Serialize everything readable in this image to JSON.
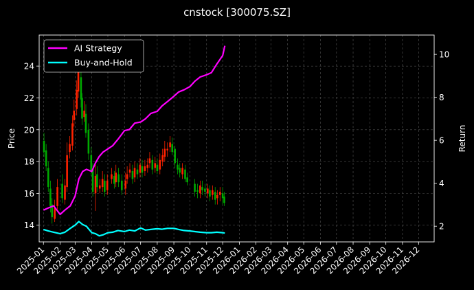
{
  "chart_data": {
    "type": "line",
    "title": "cnstock [300075.SZ]",
    "ylabel": "Price",
    "y2label": "Return",
    "xlabel": "",
    "ylim": [
      12.95,
      25.95
    ],
    "y2lim": [
      1.27,
      10.9
    ],
    "yticks": [
      14,
      16,
      18,
      20,
      22,
      24
    ],
    "y2ticks": [
      2,
      4,
      6,
      8,
      10
    ],
    "xlim": [
      "2024-12-24",
      "2026-12-30"
    ],
    "xticks": [
      "2025-01",
      "2025-02",
      "2025-03",
      "2025-04",
      "2025-05",
      "2025-06",
      "2025-07",
      "2025-08",
      "2025-09",
      "2025-10",
      "2025-11",
      "2025-12",
      "2026-01",
      "2026-02",
      "2026-03",
      "2026-04",
      "2026-05",
      "2026-06",
      "2026-07",
      "2026-08",
      "2026-09",
      "2026-10",
      "2026-11",
      "2026-12"
    ],
    "grid": true,
    "legend_position": "top-left",
    "colors": {
      "up": "#ff2200",
      "down": "#00aa00",
      "ai": "#ff00ff",
      "bh": "#00ffff",
      "background": "#000000"
    },
    "candlesticks": {
      "x": [
        "2025-01-02",
        "2025-01-06",
        "2025-01-10",
        "2025-01-14",
        "2025-01-17",
        "2025-01-22",
        "2025-01-27",
        "2025-02-05",
        "2025-02-10",
        "2025-02-14",
        "2025-02-19",
        "2025-02-24",
        "2025-02-27",
        "2025-03-04",
        "2025-03-07",
        "2025-03-12",
        "2025-03-14",
        "2025-03-18",
        "2025-03-21",
        "2025-03-26",
        "2025-03-31",
        "2025-04-03",
        "2025-04-08",
        "2025-04-11",
        "2025-04-16",
        "2025-04-21",
        "2025-04-25",
        "2025-04-30",
        "2025-05-08",
        "2025-05-13",
        "2025-05-16",
        "2025-05-21",
        "2025-05-27",
        "2025-06-03",
        "2025-06-06",
        "2025-06-11",
        "2025-06-16",
        "2025-06-20",
        "2025-06-25",
        "2025-06-30",
        "2025-07-04",
        "2025-07-09",
        "2025-07-14",
        "2025-07-18",
        "2025-07-23",
        "2025-07-28",
        "2025-08-01",
        "2025-08-06",
        "2025-08-11",
        "2025-08-15",
        "2025-08-20",
        "2025-08-25",
        "2025-08-29",
        "2025-09-03",
        "2025-09-08",
        "2025-09-12",
        "2025-09-17",
        "2025-09-22",
        "2025-09-26",
        "2025-10-10",
        "2025-10-15",
        "2025-10-20",
        "2025-10-24",
        "2025-10-29",
        "2025-11-03",
        "2025-11-07",
        "2025-11-12",
        "2025-11-17",
        "2025-11-21",
        "2025-11-26",
        "2025-12-01",
        "2025-12-04"
      ],
      "open": [
        19.3,
        18.7,
        17.6,
        16.3,
        15.3,
        14.4,
        15.2,
        16.6,
        15.6,
        16.4,
        18.6,
        19.0,
        20.6,
        21.3,
        22.4,
        23.3,
        22.0,
        20.8,
        21.0,
        20.0,
        18.4,
        17.5,
        16.0,
        17.2,
        16.3,
        16.4,
        16.8,
        16.2,
        16.9,
        17.1,
        16.7,
        17.2,
        16.8,
        16.3,
        16.9,
        17.3,
        17.4,
        17.0,
        17.5,
        17.3,
        17.7,
        17.4,
        17.6,
        17.9,
        18.1,
        17.6,
        17.8,
        17.5,
        18.0,
        18.3,
        18.7,
        18.9,
        19.1,
        18.8,
        17.8,
        17.6,
        17.2,
        17.5,
        17.0,
        16.6,
        16.2,
        16.0,
        16.4,
        16.3,
        16.0,
        16.2,
        15.9,
        16.1,
        15.7,
        15.9,
        16.0,
        15.8
      ],
      "close": [
        18.6,
        17.7,
        16.4,
        15.2,
        14.5,
        15.1,
        16.4,
        15.7,
        16.5,
        18.4,
        19.1,
        20.4,
        21.2,
        22.5,
        23.6,
        21.9,
        20.7,
        21.2,
        19.8,
        18.5,
        17.4,
        16.1,
        17.1,
        16.4,
        16.5,
        16.9,
        16.1,
        16.8,
        17.2,
        16.6,
        17.3,
        16.7,
        16.2,
        16.8,
        17.2,
        17.5,
        16.9,
        17.6,
        17.2,
        17.8,
        17.3,
        17.7,
        17.8,
        18.2,
        17.5,
        17.9,
        17.4,
        18.1,
        18.4,
        18.8,
        18.8,
        19.2,
        18.6,
        17.9,
        17.5,
        17.3,
        17.6,
        16.9,
        16.7,
        16.1,
        16.1,
        16.5,
        16.2,
        16.1,
        16.3,
        15.8,
        16.2,
        15.6,
        15.9,
        16.1,
        15.7,
        15.4
      ],
      "high": [
        19.8,
        19.1,
        18.0,
        16.8,
        15.7,
        15.6,
        16.9,
        17.2,
        16.9,
        19.2,
        19.6,
        20.9,
        21.9,
        23.1,
        24.7,
        23.8,
        22.3,
        21.8,
        21.6,
        20.4,
        18.9,
        17.9,
        17.8,
        17.7,
        16.9,
        17.4,
        17.2,
        17.2,
        17.6,
        17.4,
        17.8,
        17.6,
        17.2,
        17.3,
        17.7,
        17.9,
        17.8,
        18.0,
        17.9,
        18.2,
        18.1,
        18.1,
        18.2,
        18.6,
        18.4,
        18.3,
        18.2,
        18.5,
        18.8,
        19.3,
        19.2,
        19.6,
        19.5,
        19.0,
        18.2,
        17.9,
        17.9,
        17.8,
        17.3,
        16.9,
        16.6,
        16.8,
        16.8,
        16.6,
        16.6,
        16.5,
        16.5,
        16.4,
        16.2,
        16.4,
        16.4,
        16.1
      ],
      "low": [
        18.3,
        17.4,
        16.1,
        14.8,
        14.1,
        14.2,
        15.0,
        15.4,
        15.3,
        16.1,
        18.2,
        18.7,
        20.2,
        20.9,
        22.0,
        21.4,
        20.3,
        20.5,
        19.5,
        18.1,
        17.1,
        15.8,
        14.9,
        16.1,
        16.0,
        16.1,
        15.8,
        15.9,
        16.6,
        16.3,
        16.4,
        16.4,
        15.9,
        15.9,
        16.6,
        17.0,
        16.6,
        16.7,
        16.9,
        17.0,
        17.0,
        17.1,
        17.3,
        17.6,
        17.2,
        17.3,
        17.2,
        17.2,
        17.7,
        18.0,
        18.3,
        18.6,
        18.4,
        17.6,
        17.2,
        17.0,
        16.9,
        16.7,
        16.5,
        15.8,
        15.7,
        15.7,
        15.9,
        15.8,
        15.7,
        15.5,
        15.6,
        15.3,
        15.3,
        15.5,
        15.3,
        15.2
      ]
    },
    "series": [
      {
        "name": "AI Strategy",
        "axis": "right",
        "x": [
          "2025-01-01",
          "2025-01-10",
          "2025-01-20",
          "2025-02-01",
          "2025-02-10",
          "2025-02-20",
          "2025-03-01",
          "2025-03-08",
          "2025-03-15",
          "2025-03-22",
          "2025-04-01",
          "2025-04-08",
          "2025-04-15",
          "2025-04-22",
          "2025-05-01",
          "2025-05-10",
          "2025-05-20",
          "2025-06-01",
          "2025-06-10",
          "2025-06-20",
          "2025-07-01",
          "2025-07-10",
          "2025-07-20",
          "2025-08-01",
          "2025-08-10",
          "2025-08-20",
          "2025-09-01",
          "2025-09-10",
          "2025-09-20",
          "2025-10-01",
          "2025-10-10",
          "2025-10-20",
          "2025-11-01",
          "2025-11-10",
          "2025-11-20",
          "2025-12-01",
          "2025-12-05"
        ],
        "values": [
          2.75,
          2.85,
          2.95,
          2.55,
          2.75,
          2.95,
          3.4,
          4.2,
          4.55,
          4.65,
          4.55,
          4.95,
          5.25,
          5.45,
          5.6,
          5.75,
          6.05,
          6.45,
          6.5,
          6.8,
          6.85,
          7.0,
          7.25,
          7.35,
          7.6,
          7.8,
          8.05,
          8.25,
          8.35,
          8.5,
          8.75,
          8.95,
          9.05,
          9.15,
          9.55,
          9.95,
          10.4
        ]
      },
      {
        "name": "Buy-and-Hold",
        "axis": "right",
        "x": [
          "2025-01-01",
          "2025-01-10",
          "2025-01-20",
          "2025-02-01",
          "2025-02-10",
          "2025-02-20",
          "2025-03-01",
          "2025-03-08",
          "2025-03-15",
          "2025-03-22",
          "2025-04-01",
          "2025-04-08",
          "2025-04-15",
          "2025-04-22",
          "2025-05-01",
          "2025-05-10",
          "2025-05-20",
          "2025-06-01",
          "2025-06-10",
          "2025-06-20",
          "2025-07-01",
          "2025-07-10",
          "2025-07-20",
          "2025-08-01",
          "2025-08-10",
          "2025-08-20",
          "2025-09-01",
          "2025-09-10",
          "2025-09-20",
          "2025-10-01",
          "2025-10-10",
          "2025-10-20",
          "2025-11-01",
          "2025-11-10",
          "2025-11-20",
          "2025-12-01",
          "2025-12-05"
        ],
        "values": [
          1.85,
          1.78,
          1.72,
          1.65,
          1.72,
          1.9,
          2.05,
          2.22,
          2.08,
          2.0,
          1.7,
          1.65,
          1.55,
          1.6,
          1.7,
          1.72,
          1.8,
          1.75,
          1.82,
          1.78,
          1.92,
          1.82,
          1.85,
          1.88,
          1.86,
          1.9,
          1.9,
          1.85,
          1.8,
          1.78,
          1.75,
          1.72,
          1.7,
          1.7,
          1.72,
          1.7,
          1.68
        ]
      }
    ]
  }
}
